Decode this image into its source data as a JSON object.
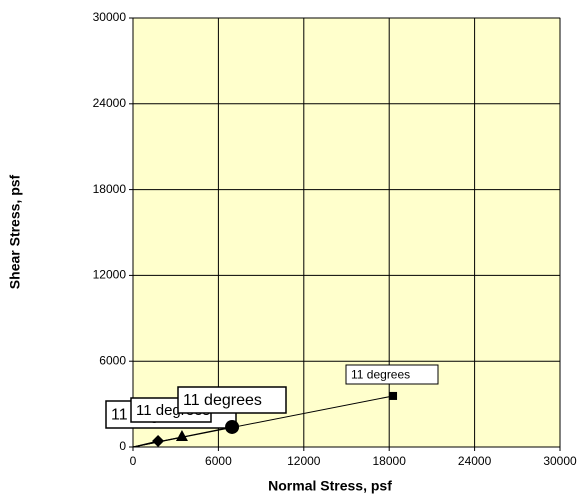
{
  "chart_data": {
    "type": "scatter",
    "xlabel": "Normal Stress, psf",
    "ylabel": "Shear Stress, psf",
    "xlim": [
      0,
      30000
    ],
    "ylim": [
      0,
      30000
    ],
    "xticks": [
      0,
      6000,
      12000,
      18000,
      24000,
      30000
    ],
    "yticks": [
      0,
      6000,
      12000,
      18000,
      24000,
      30000
    ],
    "grid": true,
    "background": "#ffffcc",
    "series": [
      {
        "marker": "diamond",
        "color": "#000000",
        "label": "11 degrees",
        "x": [
          1760
        ],
        "values": [
          420
        ]
      },
      {
        "marker": "triangle",
        "color": "#000000",
        "label": "11 degrees",
        "x": [
          3440
        ],
        "values": [
          700
        ]
      },
      {
        "marker": "circle",
        "color": "#000000",
        "label": "11 degrees",
        "x": [
          6960
        ],
        "values": [
          1400
        ]
      },
      {
        "marker": "square",
        "color": "#000000",
        "label": "11 degrees",
        "x": [
          18270
        ],
        "values": [
          3570
        ]
      }
    ]
  }
}
